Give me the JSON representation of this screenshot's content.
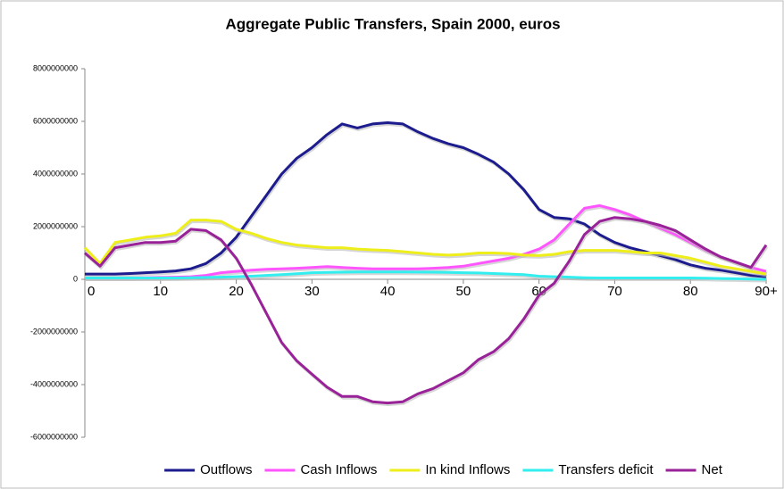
{
  "chart_data": {
    "type": "line",
    "title": "Aggregate Public Transfers, Spain 2000, euros",
    "x": [
      0,
      2,
      4,
      6,
      8,
      10,
      12,
      14,
      16,
      18,
      20,
      22,
      24,
      26,
      28,
      30,
      32,
      34,
      36,
      38,
      40,
      42,
      44,
      46,
      48,
      50,
      52,
      54,
      56,
      58,
      60,
      62,
      64,
      66,
      68,
      70,
      72,
      74,
      76,
      78,
      80,
      82,
      84,
      86,
      88,
      90
    ],
    "xlim": [
      0,
      90
    ],
    "xticks": [
      0,
      10,
      20,
      30,
      40,
      50,
      60,
      70,
      80,
      {
        "value": 90,
        "label": "90+"
      }
    ],
    "ylim": [
      -6000000000,
      8000000000
    ],
    "yticks": [
      -6000000000,
      -4000000000,
      -2000000000,
      0,
      2000000000,
      4000000000,
      6000000000,
      8000000000
    ],
    "legend": "bottom",
    "series": [
      {
        "name": "Outflows",
        "color": "#1c1c8e",
        "values": [
          200000000.0,
          200000000.0,
          200000000.0,
          220000000.0,
          250000000.0,
          280000000.0,
          320000000.0,
          400000000.0,
          600000000.0,
          1000000000.0,
          1600000000.0,
          2400000000.0,
          3200000000.0,
          4000000000.0,
          4600000000.0,
          5000000000.0,
          5500000000.0,
          5900000000.0,
          5750000000.0,
          5900000000.0,
          5950000000.0,
          5900000000.0,
          5600000000.0,
          5350000000.0,
          5150000000.0,
          5000000000.0,
          4750000000.0,
          4450000000.0,
          4000000000.0,
          3400000000.0,
          2650000000.0,
          2350000000.0,
          2300000000.0,
          2100000000.0,
          1700000000.0,
          1400000000.0,
          1200000000.0,
          1050000000.0,
          900000000.0,
          750000000.0,
          550000000.0,
          420000000.0,
          350000000.0,
          250000000.0,
          150000000.0,
          100000000.0
        ]
      },
      {
        "name": "Cash Inflows",
        "color": "#ff55ff",
        "values": [
          50000000.0,
          50000000.0,
          50000000.0,
          50000000.0,
          60000000.0,
          70000000.0,
          80000000.0,
          100000000.0,
          150000000.0,
          250000000.0,
          300000000.0,
          350000000.0,
          380000000.0,
          400000000.0,
          420000000.0,
          450000000.0,
          480000000.0,
          450000000.0,
          420000000.0,
          400000000.0,
          400000000.0,
          400000000.0,
          400000000.0,
          420000000.0,
          450000000.0,
          500000000.0,
          600000000.0,
          700000000.0,
          800000000.0,
          950000000.0,
          1150000000.0,
          1500000000.0,
          2100000000.0,
          2700000000.0,
          2800000000.0,
          2650000000.0,
          2450000000.0,
          2200000000.0,
          1950000000.0,
          1700000000.0,
          1400000000.0,
          1100000000.0,
          850000000.0,
          650000000.0,
          450000000.0,
          300000000.0
        ]
      },
      {
        "name": "In kind Inflows",
        "color": "#eeee1a",
        "values": [
          1200000000.0,
          600000000.0,
          1400000000.0,
          1500000000.0,
          1600000000.0,
          1650000000.0,
          1750000000.0,
          2250000000.0,
          2250000000.0,
          2200000000.0,
          1900000000.0,
          1750000000.0,
          1550000000.0,
          1400000000.0,
          1300000000.0,
          1250000000.0,
          1200000000.0,
          1200000000.0,
          1150000000.0,
          1120000000.0,
          1100000000.0,
          1050000000.0,
          1000000000.0,
          950000000.0,
          920000000.0,
          950000000.0,
          1000000000.0,
          1000000000.0,
          980000000.0,
          920000000.0,
          900000000.0,
          950000000.0,
          1050000000.0,
          1100000000.0,
          1100000000.0,
          1100000000.0,
          1050000000.0,
          1000000000.0,
          1000000000.0,
          900000000.0,
          800000000.0,
          650000000.0,
          500000000.0,
          400000000.0,
          300000000.0,
          200000000.0
        ]
      },
      {
        "name": "Transfers deficit",
        "color": "#33eeee",
        "values": [
          50000000.0,
          50000000.0,
          50000000.0,
          50000000.0,
          50000000.0,
          50000000.0,
          50000000.0,
          60000000.0,
          70000000.0,
          80000000.0,
          100000000.0,
          120000000.0,
          150000000.0,
          180000000.0,
          210000000.0,
          250000000.0,
          260000000.0,
          270000000.0,
          280000000.0,
          280000000.0,
          280000000.0,
          280000000.0,
          275000000.0,
          270000000.0,
          260000000.0,
          250000000.0,
          240000000.0,
          220000000.0,
          200000000.0,
          180000000.0,
          120000000.0,
          100000000.0,
          80000000.0,
          60000000.0,
          50000000.0,
          50000000.0,
          50000000.0,
          50000000.0,
          50000000.0,
          50000000.0,
          50000000.0,
          40000000.0,
          30000000.0,
          20000000.0,
          10000000.0,
          0
        ]
      },
      {
        "name": "Net",
        "color": "#992299",
        "values": [
          1000000000.0,
          500000000.0,
          1200000000.0,
          1300000000.0,
          1400000000.0,
          1400000000.0,
          1450000000.0,
          1900000000.0,
          1850000000.0,
          1500000000.0,
          800000000.0,
          -200000000.0,
          -1300000000.0,
          -2400000000.0,
          -3100000000.0,
          -3600000000.0,
          -4100000000.0,
          -4450000000.0,
          -4450000000.0,
          -4650000000.0,
          -4700000000.0,
          -4650000000.0,
          -4350000000.0,
          -4150000000.0,
          -3850000000.0,
          -3550000000.0,
          -3050000000.0,
          -2750000000.0,
          -2250000000.0,
          -1500000000.0,
          -600000000.0,
          -150000000.0,
          700000000.0,
          1700000000.0,
          2200000000.0,
          2350000000.0,
          2300000000.0,
          2200000000.0,
          2050000000.0,
          1850000000.0,
          1500000000.0,
          1150000000.0,
          850000000.0,
          650000000.0,
          450000000.0,
          1300000000.0
        ]
      }
    ]
  }
}
